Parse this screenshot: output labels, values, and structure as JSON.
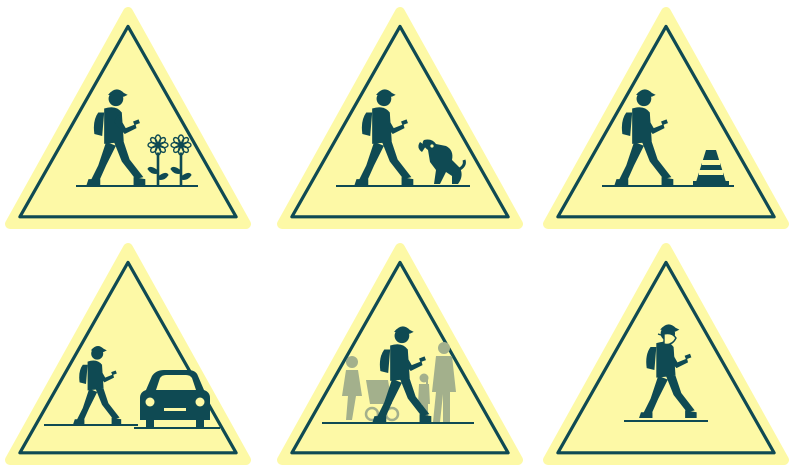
{
  "colors": {
    "sign_fill": "#fdf9a6",
    "sign_border": "#0f4a53",
    "sign_outer": "#fdf9a6",
    "figure": "#0f4a53",
    "figure_faded": "#a3b08c"
  },
  "signs": [
    {
      "id": "sign-flowers",
      "scene": "pedestrian-with-phone-and-flowers",
      "obstacle_icon": "flowers-icon"
    },
    {
      "id": "sign-dog",
      "scene": "pedestrian-with-phone-and-dog",
      "obstacle_icon": "dog-icon"
    },
    {
      "id": "sign-cone",
      "scene": "pedestrian-with-phone-and-traffic-cone",
      "obstacle_icon": "traffic-cone-icon"
    },
    {
      "id": "sign-car",
      "scene": "pedestrian-with-phone-and-car",
      "obstacle_icon": "car-icon"
    },
    {
      "id": "sign-crowd",
      "scene": "pedestrian-with-phone-and-faded-people",
      "obstacle_icon": "faded-people-icon"
    },
    {
      "id": "sign-masked",
      "scene": "masked-pedestrian-with-phone",
      "obstacle_icon": "face-mask-icon"
    }
  ]
}
